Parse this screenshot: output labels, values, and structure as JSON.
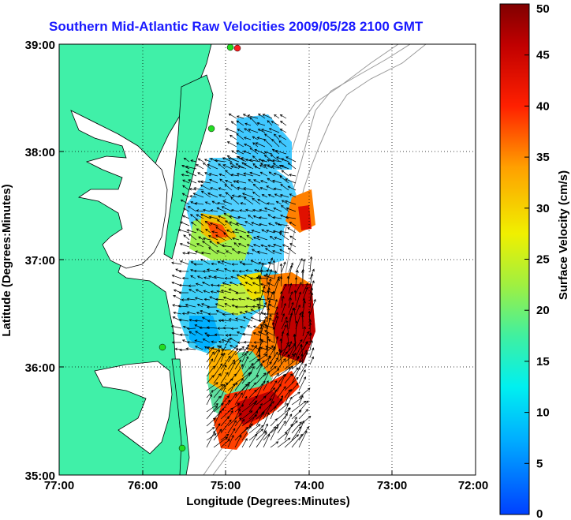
{
  "title": "Southern Mid-Atlantic Raw Velocities 2009/05/28 2100 GMT",
  "xlabel": "Longitude (Degrees:Minutes)",
  "ylabel": "Latitude (Degrees:Minutes)",
  "x_ticks": [
    "77:00",
    "76:00",
    "75:00",
    "74:00",
    "73:00",
    "72:00"
  ],
  "y_ticks": [
    "39:00",
    "38:00",
    "37:00",
    "36:00",
    "35:00"
  ],
  "colorbar": {
    "label": "Surface Velocity (cm/s)",
    "ticks": [
      "50",
      "45",
      "40",
      "35",
      "30",
      "25",
      "20",
      "15",
      "10",
      "5",
      "0"
    ],
    "range": [
      0,
      50
    ],
    "units": "cm/s"
  },
  "colors": {
    "land": "#40f0a8",
    "title": "#1a1aff",
    "station_marker": "#22dd22",
    "station_marker_red": "#ff2020"
  },
  "map": {
    "lon_range": [
      -77,
      -72
    ],
    "lat_range": [
      35,
      39
    ],
    "grid": "dotted"
  }
}
